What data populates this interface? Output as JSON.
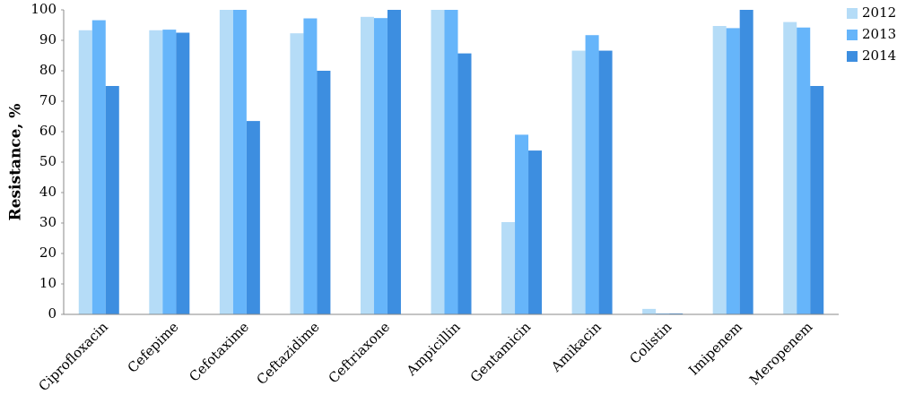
{
  "chart_data": {
    "type": "bar",
    "y_label": "Resistance, %",
    "categories": [
      "Ciprofloxacin",
      "Cefepime",
      "Cefotaxime",
      "Ceftazidime",
      "Ceftriaxone",
      "Ampicillin",
      "Gentamicin",
      "Amikacin",
      "Colistin",
      "Imipenem",
      "Meropenem"
    ],
    "series": [
      {
        "name": "2012",
        "color": "#b5dcf7",
        "values": [
          93.3,
          93.3,
          100,
          92.3,
          97.7,
          100,
          30.3,
          86.6,
          1.8,
          94.7,
          96
        ]
      },
      {
        "name": "2013",
        "color": "#66b5fa",
        "values": [
          96.6,
          93.5,
          100,
          97.2,
          97.3,
          100,
          59,
          91.7,
          0.3,
          94,
          94.2
        ]
      },
      {
        "name": "2014",
        "color": "#3d8ee0",
        "values": [
          75,
          92.5,
          63.5,
          80,
          100,
          85.7,
          53.8,
          86.6,
          0.3,
          100,
          75
        ]
      }
    ],
    "ylim": [
      0,
      100
    ],
    "yticks": [
      0,
      10,
      20,
      30,
      40,
      50,
      60,
      70,
      80,
      90,
      100
    ],
    "legend": "right"
  }
}
